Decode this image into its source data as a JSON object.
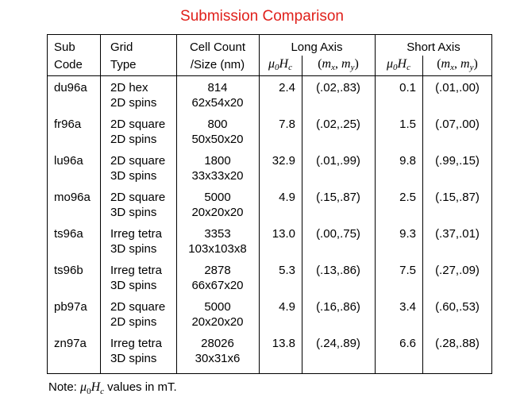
{
  "title": "Submission Comparison",
  "headers": {
    "sub": [
      "Sub",
      "Code"
    ],
    "grid": [
      "Grid",
      "Type"
    ],
    "cell": [
      "Cell Count",
      "/Size (nm)"
    ],
    "long_axis": "Long Axis",
    "short_axis": "Short Axis",
    "mu0": "μ",
    "mu0_sub": "0",
    "H": "H",
    "Hc_sub": "c",
    "mxy_open": "(",
    "mx": "m",
    "mx_sub": "x",
    "comma": ", ",
    "my": "m",
    "my_sub": "y",
    "mxy_close": ")"
  },
  "rows": [
    {
      "code": "du96a",
      "grid1": "2D hex",
      "grid2": "2D spins",
      "count": "814",
      "size": "62x54x20",
      "long_h": "2.4",
      "long_m": "(.02,.83)",
      "short_h": "0.1",
      "short_m": "(.01,.00)"
    },
    {
      "code": "fr96a",
      "grid1": "2D square",
      "grid2": "2D spins",
      "count": "800",
      "size": "50x50x20",
      "long_h": "7.8",
      "long_m": "(.02,.25)",
      "short_h": "1.5",
      "short_m": "(.07,.00)"
    },
    {
      "code": "lu96a",
      "grid1": "2D square",
      "grid2": "3D spins",
      "count": "1800",
      "size": "33x33x20",
      "long_h": "32.9",
      "long_m": "(.01,.99)",
      "short_h": "9.8",
      "short_m": "(.99,.15)"
    },
    {
      "code": "mo96a",
      "grid1": "2D square",
      "grid2": "3D spins",
      "count": "5000",
      "size": "20x20x20",
      "long_h": "4.9",
      "long_m": "(.15,.87)",
      "short_h": "2.5",
      "short_m": "(.15,.87)"
    },
    {
      "code": "ts96a",
      "grid1": "Irreg tetra",
      "grid2": "3D spins",
      "count": "3353",
      "size": "103x103x8",
      "long_h": "13.0",
      "long_m": "(.00,.75)",
      "short_h": "9.3",
      "short_m": "(.37,.01)"
    },
    {
      "code": "ts96b",
      "grid1": "Irreg tetra",
      "grid2": "3D spins",
      "count": "2878",
      "size": "66x67x20",
      "long_h": "5.3",
      "long_m": "(.13,.86)",
      "short_h": "7.5",
      "short_m": "(.27,.09)"
    },
    {
      "code": "pb97a",
      "grid1": "2D square",
      "grid2": "2D spins",
      "count": "5000",
      "size": "20x20x20",
      "long_h": "4.9",
      "long_m": "(.16,.86)",
      "short_h": "3.4",
      "short_m": "(.60,.53)"
    },
    {
      "code": "zn97a",
      "grid1": "Irreg tetra",
      "grid2": "3D spins",
      "count": "28026",
      "size": "30x31x6",
      "long_h": "13.8",
      "long_m": "(.24,.89)",
      "short_h": "6.6",
      "short_m": "(.28,.88)"
    }
  ],
  "note": {
    "prefix": "Note: ",
    "suffix": " values in mT."
  }
}
